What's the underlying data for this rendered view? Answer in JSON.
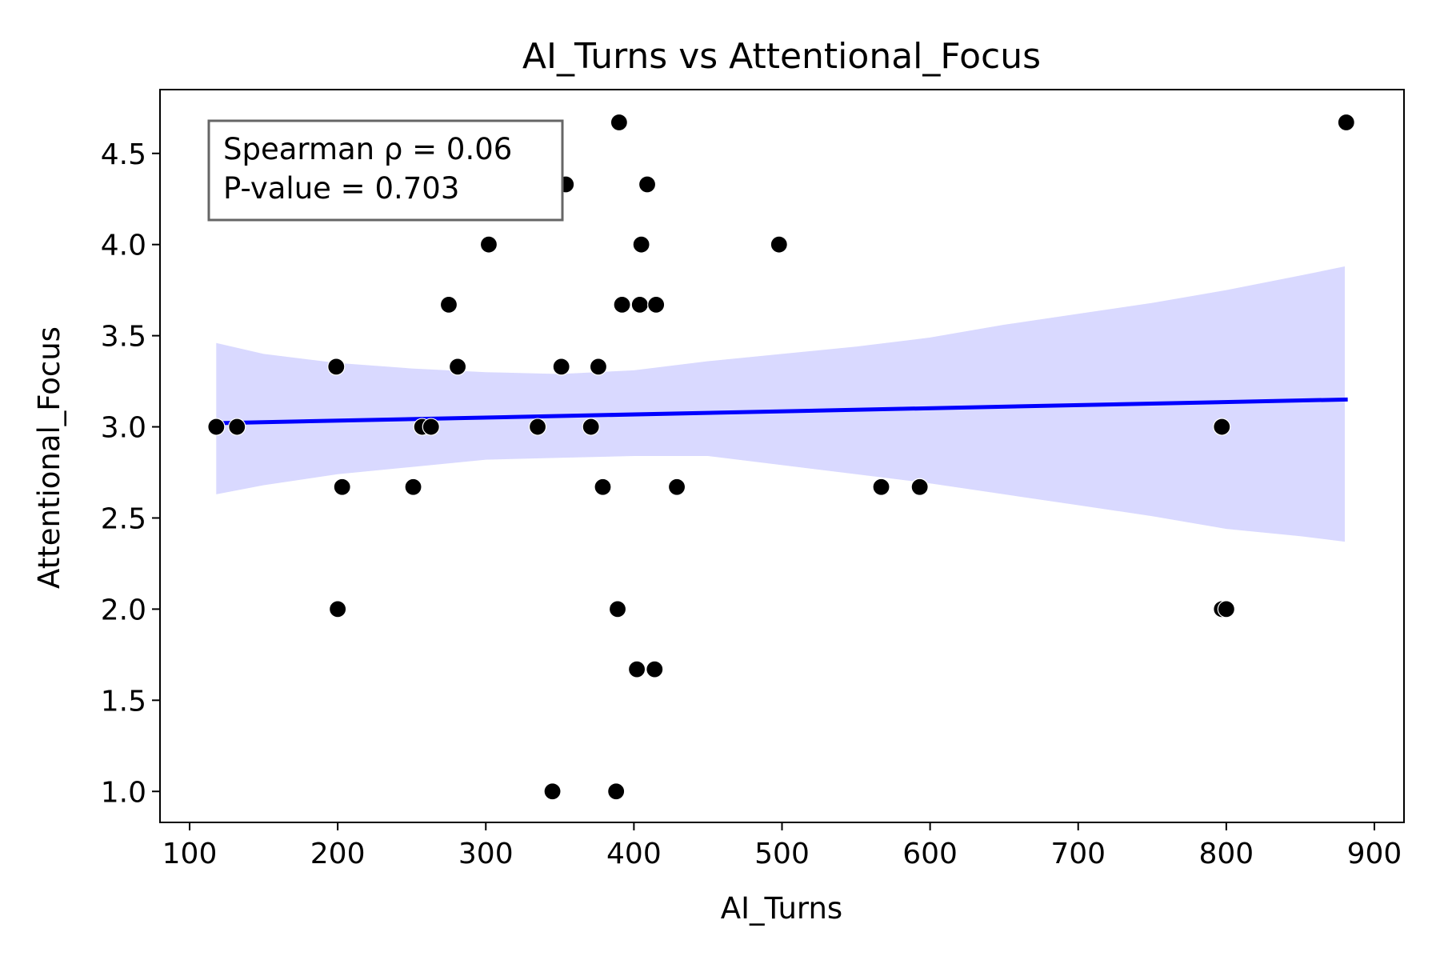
{
  "chart_data": {
    "type": "scatter",
    "title": "AI_Turns vs Attentional_Focus",
    "xlabel": "AI_Turns",
    "ylabel": "Attentional_Focus",
    "xlim": [
      80,
      920
    ],
    "ylim": [
      0.83,
      4.85
    ],
    "xticks": [
      "100",
      "200",
      "300",
      "400",
      "500",
      "600",
      "700",
      "800",
      "900"
    ],
    "yticks": [
      "1.0",
      "1.5",
      "2.0",
      "2.5",
      "3.0",
      "3.5",
      "4.0",
      "4.5"
    ],
    "grid": false,
    "points": [
      {
        "x": 118,
        "y": 3.0
      },
      {
        "x": 132,
        "y": 3.0
      },
      {
        "x": 199,
        "y": 3.33
      },
      {
        "x": 200,
        "y": 2.0
      },
      {
        "x": 203,
        "y": 2.67
      },
      {
        "x": 251,
        "y": 2.67
      },
      {
        "x": 257,
        "y": 3.0
      },
      {
        "x": 263,
        "y": 3.0
      },
      {
        "x": 275,
        "y": 3.67
      },
      {
        "x": 281,
        "y": 3.33
      },
      {
        "x": 302,
        "y": 4.0
      },
      {
        "x": 335,
        "y": 3.0
      },
      {
        "x": 345,
        "y": 1.0
      },
      {
        "x": 351,
        "y": 3.33
      },
      {
        "x": 354,
        "y": 4.33
      },
      {
        "x": 371,
        "y": 3.0
      },
      {
        "x": 376,
        "y": 3.33
      },
      {
        "x": 379,
        "y": 2.67
      },
      {
        "x": 388,
        "y": 1.0
      },
      {
        "x": 389,
        "y": 2.0
      },
      {
        "x": 390,
        "y": 4.67
      },
      {
        "x": 392,
        "y": 3.67
      },
      {
        "x": 402,
        "y": 1.67
      },
      {
        "x": 404,
        "y": 3.67
      },
      {
        "x": 405,
        "y": 4.0
      },
      {
        "x": 409,
        "y": 4.33
      },
      {
        "x": 414,
        "y": 1.67
      },
      {
        "x": 415,
        "y": 3.67
      },
      {
        "x": 429,
        "y": 2.67
      },
      {
        "x": 498,
        "y": 4.0
      },
      {
        "x": 567,
        "y": 2.67
      },
      {
        "x": 593,
        "y": 2.67
      },
      {
        "x": 797,
        "y": 2.0
      },
      {
        "x": 797,
        "y": 3.0
      },
      {
        "x": 800,
        "y": 2.0
      },
      {
        "x": 881,
        "y": 4.67
      }
    ],
    "regression": {
      "x": [
        118,
        882
      ],
      "y": [
        3.02,
        3.15
      ],
      "ci_upper": [
        {
          "x": 118,
          "y": 3.46
        },
        {
          "x": 150,
          "y": 3.4
        },
        {
          "x": 200,
          "y": 3.35
        },
        {
          "x": 250,
          "y": 3.32
        },
        {
          "x": 300,
          "y": 3.3
        },
        {
          "x": 350,
          "y": 3.29
        },
        {
          "x": 400,
          "y": 3.31
        },
        {
          "x": 450,
          "y": 3.36
        },
        {
          "x": 500,
          "y": 3.4
        },
        {
          "x": 550,
          "y": 3.44
        },
        {
          "x": 600,
          "y": 3.49
        },
        {
          "x": 650,
          "y": 3.56
        },
        {
          "x": 700,
          "y": 3.62
        },
        {
          "x": 750,
          "y": 3.68
        },
        {
          "x": 800,
          "y": 3.75
        },
        {
          "x": 850,
          "y": 3.83
        },
        {
          "x": 880,
          "y": 3.88
        }
      ],
      "ci_lower": [
        {
          "x": 118,
          "y": 2.63
        },
        {
          "x": 150,
          "y": 2.68
        },
        {
          "x": 200,
          "y": 2.74
        },
        {
          "x": 250,
          "y": 2.78
        },
        {
          "x": 300,
          "y": 2.82
        },
        {
          "x": 350,
          "y": 2.83
        },
        {
          "x": 400,
          "y": 2.84
        },
        {
          "x": 450,
          "y": 2.84
        },
        {
          "x": 500,
          "y": 2.79
        },
        {
          "x": 550,
          "y": 2.74
        },
        {
          "x": 600,
          "y": 2.69
        },
        {
          "x": 650,
          "y": 2.63
        },
        {
          "x": 700,
          "y": 2.57
        },
        {
          "x": 750,
          "y": 2.51
        },
        {
          "x": 800,
          "y": 2.44
        },
        {
          "x": 850,
          "y": 2.4
        },
        {
          "x": 880,
          "y": 2.37
        }
      ]
    },
    "annotation": {
      "line1": "Spearman ρ = 0.06",
      "line2": "P-value = 0.703",
      "placement": "top-left"
    },
    "colors": {
      "points": "#000000",
      "line": "#0000ff",
      "band": "#d9d9ff",
      "box_edge": "#666666"
    }
  }
}
